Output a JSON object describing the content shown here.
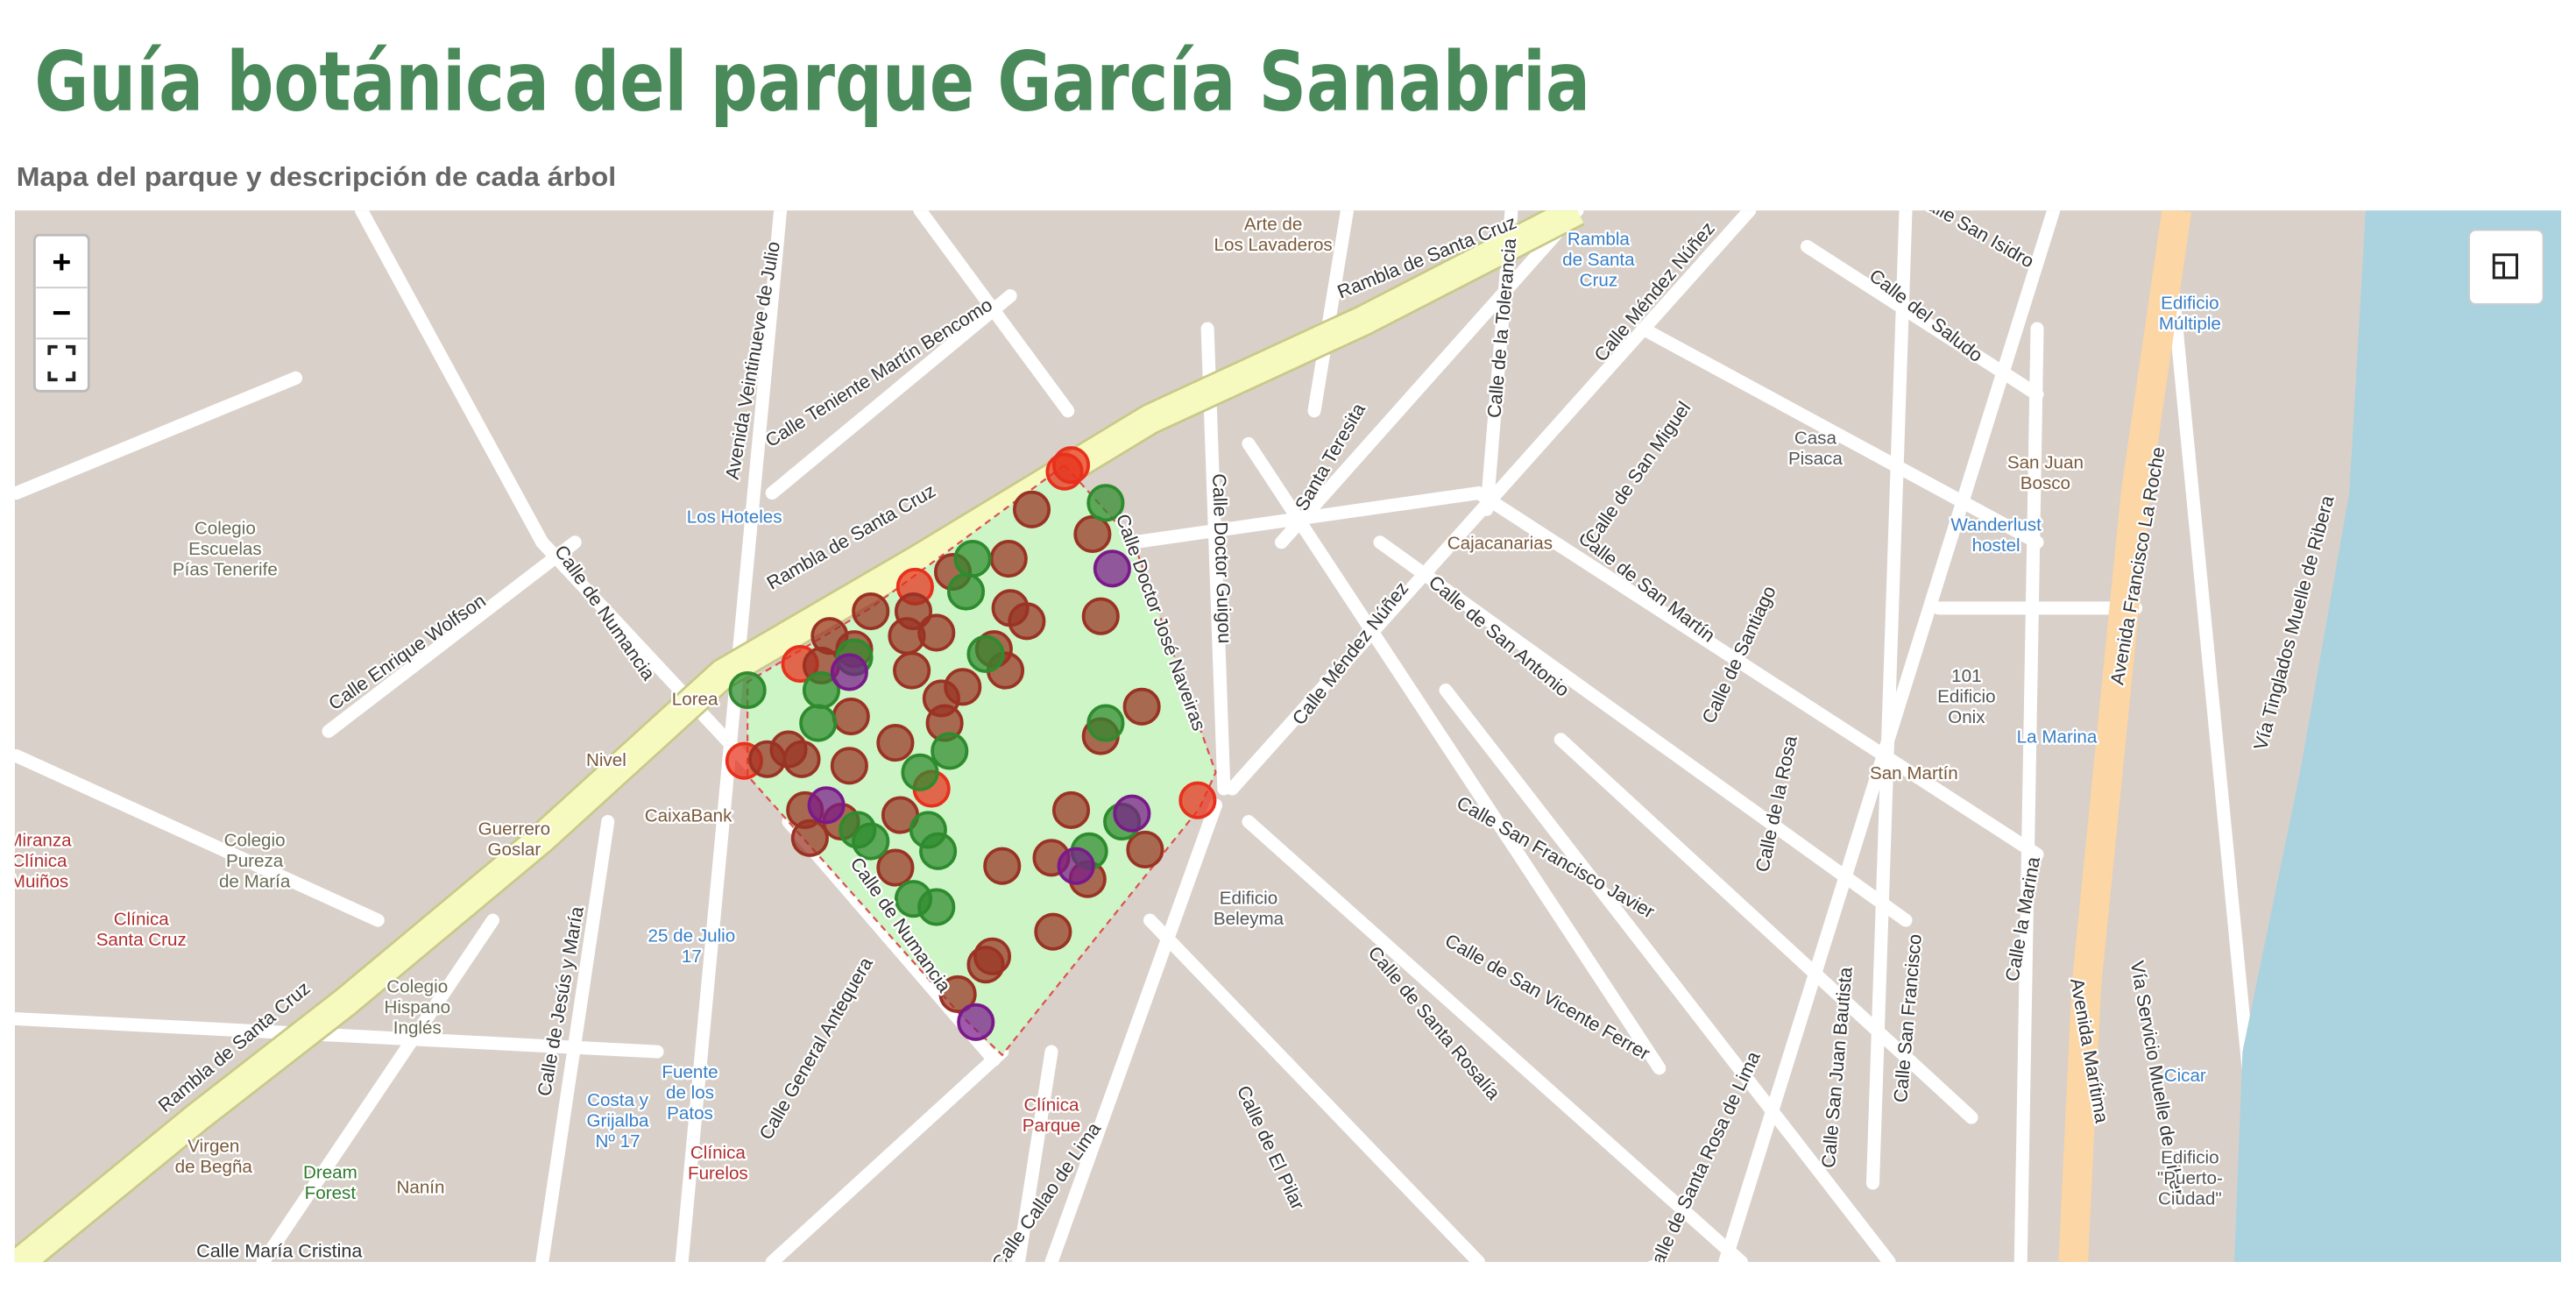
{
  "header": {
    "title": "Guía botánica del parque García Sanabria",
    "subtitle": "Mapa del parque y descripción de cada árbol"
  },
  "controls": {
    "zoom_in": "+",
    "zoom_out": "−"
  },
  "map": {
    "streets": [
      "Rambla de Santa Cruz",
      "Rambla de Santa Cruz",
      "Rambla de Santa Cruz",
      "Calle Teniente Martín Bencomo",
      "Avenida Veintinueve de Julio",
      "Calle Doctor Guigou",
      "Calle Doctor José Naveiras",
      "Calle Méndez Núñez",
      "Calle de Numancia",
      "Calle de Numancia",
      "Calle Enrique Wolfson",
      "Calle de San Antonio",
      "Calle de San Martín",
      "Calle de San Miguel",
      "Calle de Santiago",
      "Calle de la Rosa",
      "Calle San Francisco Javier",
      "Calle de San Vicente Ferrer",
      "Calle de Santa Rosalía",
      "Calle de Santa Rosa de Lima",
      "Calle San Juan Bautista",
      "Calle San Francisco",
      "Calle la Marina",
      "Avenida Francisco La Roche",
      "Avenida Marítima",
      "Vía Servicio Muelle de Ribera",
      "Vía Tinglados Muelle de Ribera",
      "Calle del Saludo",
      "Calle San Isidro",
      "Calle Méndez Núñez",
      "Calle de la Tolerancia",
      "Santa Teresita",
      "Calle General Antequera",
      "Calle de Jesús y María",
      "Calle Callao de Lima",
      "Calle de El Pilar",
      "Calle María Cristina"
    ],
    "pois": [
      {
        "lines": [
          "Arte de",
          "Los Lavaderos"
        ]
      },
      {
        "lines": [
          "Los Hoteles"
        ]
      },
      {
        "lines": [
          "Colegio",
          "Escuelas",
          "Pías Tenerife"
        ]
      },
      {
        "lines": [
          "Casa",
          "Pisaca"
        ]
      },
      {
        "lines": [
          "Cajacanarias"
        ]
      },
      {
        "lines": [
          "San Juan",
          "Bosco"
        ]
      },
      {
        "lines": [
          "Wanderlust",
          "hostel"
        ]
      },
      {
        "lines": [
          "Edificio",
          "Múltiple"
        ]
      },
      {
        "lines": [
          "101",
          "Edificio",
          "Onix"
        ]
      },
      {
        "lines": [
          "La Marina"
        ]
      },
      {
        "lines": [
          "San Martín"
        ]
      },
      {
        "lines": [
          "Edificio",
          "Beleyma"
        ]
      },
      {
        "lines": [
          "Clínica",
          "Parque"
        ]
      },
      {
        "lines": [
          "Fuente",
          "de los",
          "Patos"
        ]
      },
      {
        "lines": [
          "Costa y",
          "Grijalba",
          "Nº 17"
        ]
      },
      {
        "lines": [
          "25 de Julio",
          "17"
        ]
      },
      {
        "lines": [
          "Clínica",
          "Furelos"
        ]
      },
      {
        "lines": [
          "Dream",
          "Forest"
        ]
      },
      {
        "lines": [
          "Virgen",
          "de Begña"
        ]
      },
      {
        "lines": [
          "Colegio",
          "Hispano",
          "Inglés"
        ]
      },
      {
        "lines": [
          "Colegio",
          "Pureza",
          "de María"
        ]
      },
      {
        "lines": [
          "Clínica",
          "Santa Cruz"
        ]
      },
      {
        "lines": [
          "Miranza",
          "Clínica",
          "Muiños"
        ]
      },
      {
        "lines": [
          "Guerrero",
          "Goslar"
        ]
      },
      {
        "lines": [
          "CaixaBank"
        ]
      },
      {
        "lines": [
          "Lorea"
        ]
      },
      {
        "lines": [
          "Nivel"
        ]
      },
      {
        "lines": [
          "Edificio",
          "\"Puerto-",
          "Ciudad\""
        ]
      },
      {
        "lines": [
          "Cicar"
        ]
      },
      {
        "lines": [
          "Nanín"
        ]
      },
      {
        "lines": [
          "Rambla",
          "de Santa",
          "Cruz"
        ]
      }
    ]
  }
}
